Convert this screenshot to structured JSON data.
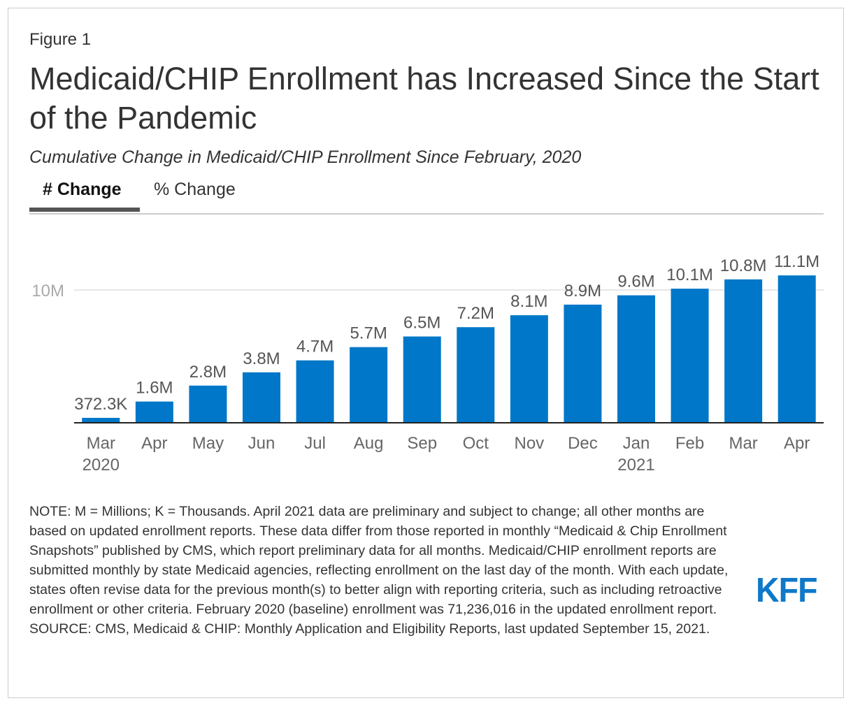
{
  "figure_label": "Figure 1",
  "title": "Medicaid/CHIP Enrollment has Increased Since the Start of the Pandemic",
  "subtitle": "Cumulative Change in Medicaid/CHIP Enrollment Since February, 2020",
  "tabs": [
    {
      "label": "# Change",
      "active": true
    },
    {
      "label": "% Change",
      "active": false
    }
  ],
  "chart_data": {
    "type": "bar",
    "categories": [
      "Mar 2020",
      "Apr",
      "May",
      "Jun",
      "Jul",
      "Aug",
      "Sep",
      "Oct",
      "Nov",
      "Dec",
      "Jan 2021",
      "Feb",
      "Mar",
      "Apr"
    ],
    "values": [
      0.3723,
      1.6,
      2.8,
      3.8,
      4.7,
      5.7,
      6.5,
      7.2,
      8.1,
      8.9,
      9.6,
      10.1,
      10.8,
      11.1
    ],
    "data_labels": [
      "372.3K",
      "1.6M",
      "2.8M",
      "3.8M",
      "4.7M",
      "5.7M",
      "6.5M",
      "7.2M",
      "8.1M",
      "8.9M",
      "9.6M",
      "10.1M",
      "10.8M",
      "11.1M"
    ],
    "unit": "millions",
    "yticks": [
      {
        "value": 10,
        "label": "10M"
      }
    ],
    "ylim": [
      0,
      11.1
    ],
    "grid": true,
    "bar_color": "#0077c8"
  },
  "note": "NOTE: M = Millions; K = Thousands. April 2021 data are preliminary and subject to change; all other months are based on updated enrollment reports. These data differ from those reported in monthly “Medicaid & Chip Enrollment Snapshots” published by CMS, which report preliminary data for all months. Medicaid/CHIP enrollment reports are submitted monthly by state Medicaid agencies, reflecting enrollment on the last day of the month. With each update, states often revise data for the previous month(s) to better align with reporting criteria, such as including retroactive enrollment or other criteria. February 2020 (baseline) enrollment was 71,236,016 in the updated enrollment report.",
  "source": "SOURCE: CMS, Medicaid & CHIP: Monthly Application and Eligibility Reports, last updated September 15, 2021.",
  "logo": "KFF"
}
